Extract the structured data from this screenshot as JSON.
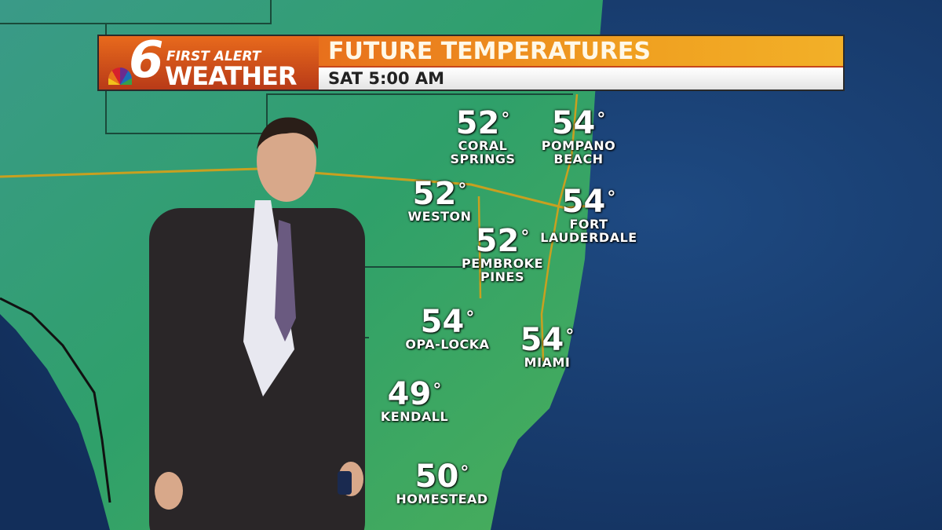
{
  "header": {
    "logo_number": "6",
    "logo_line1": "FIRST ALERT",
    "logo_line2": "WEATHER",
    "title": "FUTURE TEMPERATURES",
    "time": "SAT  5:00 AM"
  },
  "colors": {
    "land": "#2f9a6a",
    "ocean": "#173a6e",
    "header_orange": "#e8701c"
  },
  "cities": [
    {
      "temp": "52",
      "unit": "°",
      "name": "CORAL\nSPRINGS"
    },
    {
      "temp": "54",
      "unit": "°",
      "name": "POMPANO\nBEACH"
    },
    {
      "temp": "52",
      "unit": "°",
      "name": "WESTON"
    },
    {
      "temp": "54",
      "unit": "°",
      "name": "FORT\nLAUDERDALE"
    },
    {
      "temp": "52",
      "unit": "°",
      "name": "PEMBROKE\nPINES"
    },
    {
      "temp": "54",
      "unit": "°",
      "name": "OPA-LOCKA"
    },
    {
      "temp": "54",
      "unit": "°",
      "name": "MIAMI"
    },
    {
      "temp": "49",
      "unit": "°",
      "name": "KENDALL"
    },
    {
      "temp": "50",
      "unit": "°",
      "name": "HOMESTEAD"
    }
  ]
}
